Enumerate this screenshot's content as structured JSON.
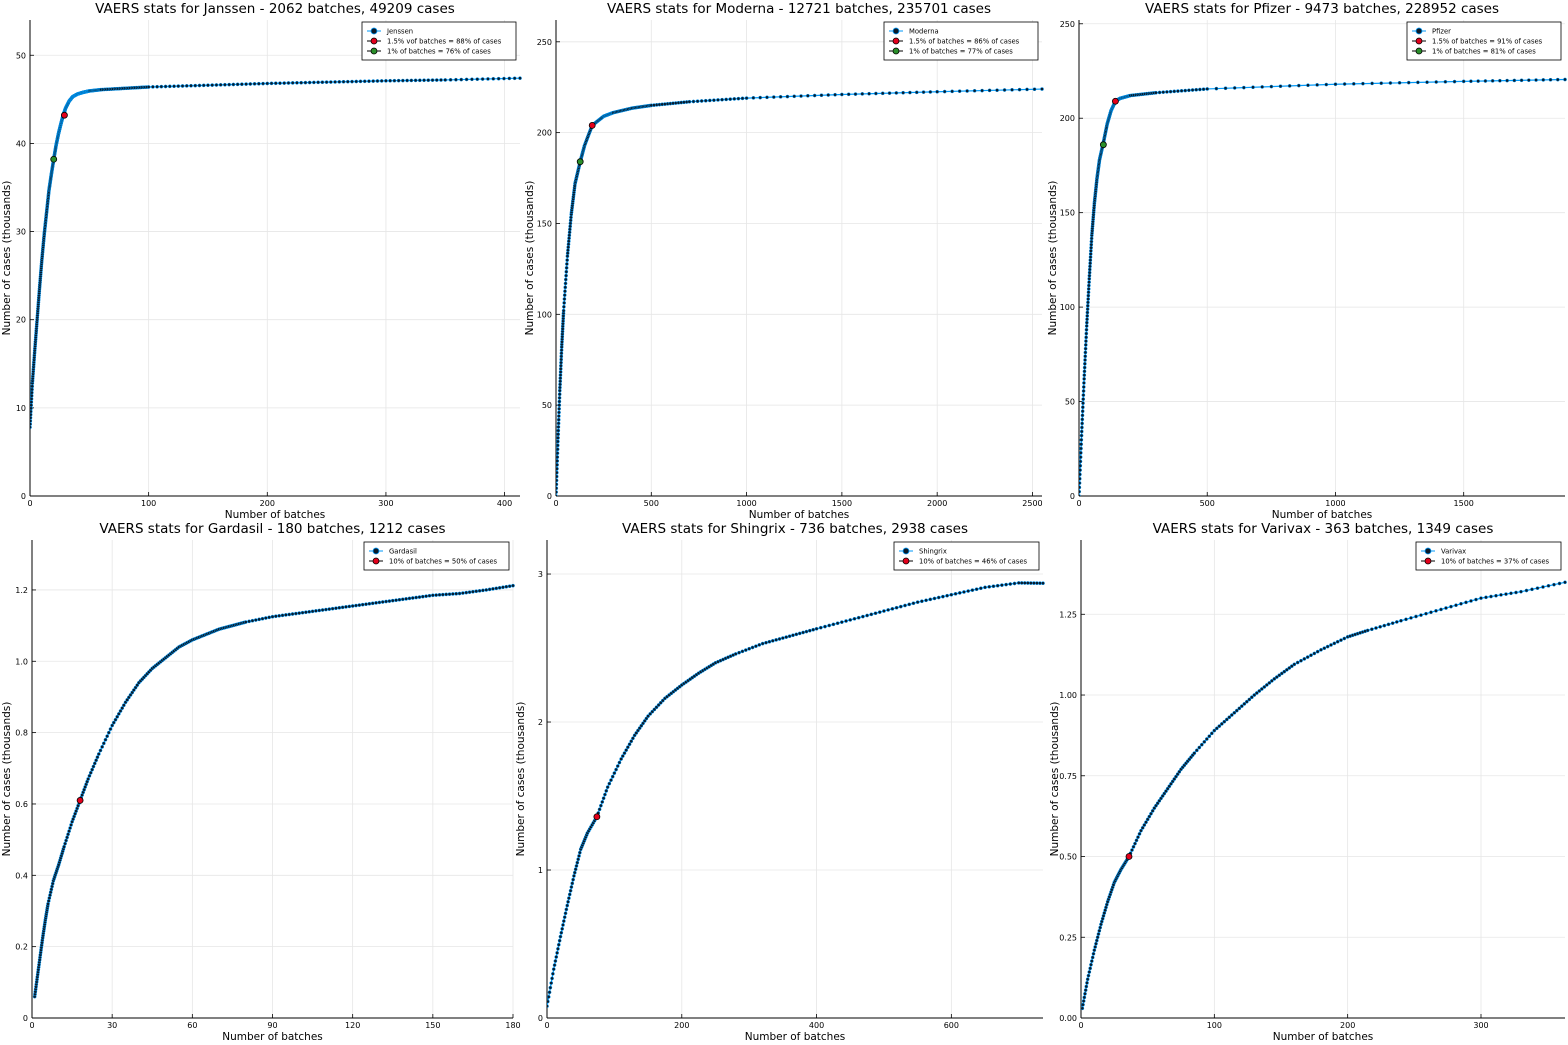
{
  "chart_data": [
    {
      "type": "line",
      "title": "VAERS stats for Janssen - 2062 batches, 49209 cases",
      "xlabel": "Number of batches",
      "ylabel": "Number of cases (thousands)",
      "xlim": [
        0,
        413
      ],
      "ylim": [
        0,
        54
      ],
      "xticks": [
        0,
        100,
        200,
        300,
        400
      ],
      "yticks": [
        0,
        10,
        20,
        30,
        40,
        50
      ],
      "grid": true,
      "legend_position": "top-right",
      "series": [
        {
          "name": "Jenssen",
          "color": "#009AFA",
          "markers": true,
          "x": [
            0,
            2,
            4,
            6,
            8,
            10,
            12,
            14,
            16,
            18,
            20,
            22,
            24,
            26,
            28,
            30,
            33,
            36,
            40,
            45,
            50,
            60,
            80,
            100,
            150,
            200,
            250,
            300,
            350,
            413
          ],
          "y": [
            7.8,
            12.8,
            16.5,
            20.0,
            23.5,
            26.8,
            29.7,
            32.2,
            34.7,
            36.5,
            38.2,
            39.8,
            41.1,
            42.2,
            43.2,
            44.0,
            44.8,
            45.3,
            45.6,
            45.8,
            45.95,
            46.1,
            46.25,
            46.4,
            46.6,
            46.8,
            46.95,
            47.1,
            47.2,
            47.4
          ]
        },
        {
          "name": "1.5% vof batches = 88% of cases",
          "color": "#E3001B",
          "x": [
            29
          ],
          "y": [
            43.2
          ]
        },
        {
          "name": "1% of batches = 76% of cases",
          "color": "#2A8F2A",
          "x": [
            20
          ],
          "y": [
            38.2
          ]
        }
      ]
    },
    {
      "type": "line",
      "title": "VAERS stats for Moderna - 12721 batches, 235701 cases",
      "xlabel": "Number of batches",
      "ylabel": "Number of cases (thousands)",
      "xlim": [
        0,
        2550
      ],
      "ylim": [
        0,
        262
      ],
      "xticks": [
        0,
        500,
        1000,
        1500,
        2000,
        2500
      ],
      "yticks": [
        0,
        50,
        100,
        150,
        200,
        250
      ],
      "grid": true,
      "legend_position": "top-right",
      "series": [
        {
          "name": "Moderna",
          "color": "#009AFA",
          "markers": true,
          "x": [
            0,
            10,
            20,
            30,
            40,
            60,
            80,
            100,
            127,
            150,
            190,
            250,
            300,
            400,
            500,
            700,
            1000,
            1500,
            2000,
            2550
          ],
          "y": [
            0,
            30,
            58,
            82,
            102,
            132,
            155,
            172,
            184,
            193,
            204,
            209,
            211,
            213.5,
            215,
            217,
            219,
            221,
            222.5,
            224
          ]
        },
        {
          "name": "1.5% of batches = 86% of cases",
          "color": "#E3001B",
          "x": [
            190
          ],
          "y": [
            204
          ]
        },
        {
          "name": "1% of batches = 77% of cases",
          "color": "#2A8F2A",
          "x": [
            127
          ],
          "y": [
            184
          ]
        }
      ]
    },
    {
      "type": "line",
      "title": "VAERS stats for Pfizer - 9473 batches, 228952 cases",
      "xlabel": "Number of batches",
      "ylabel": "Number of cases (thousands)",
      "xlim": [
        0,
        1895
      ],
      "ylim": [
        0,
        252
      ],
      "xticks": [
        0,
        500,
        1000,
        1500
      ],
      "yticks": [
        0,
        50,
        100,
        150,
        200,
        250
      ],
      "grid": true,
      "legend_position": "top-right",
      "series": [
        {
          "name": "Pfizer",
          "color": "#009AFA",
          "markers": true,
          "x": [
            0,
            10,
            20,
            30,
            40,
            50,
            60,
            70,
            80,
            95,
            110,
            125,
            142,
            160,
            200,
            300,
            500,
            1000,
            1500,
            1895
          ],
          "y": [
            0,
            32,
            62,
            90,
            115,
            138,
            155,
            168,
            178,
            187,
            197,
            204,
            209,
            210.5,
            212,
            213.5,
            215.5,
            218,
            219.5,
            220.5
          ]
        },
        {
          "name": "1.5% of batches = 91% of cases",
          "color": "#E3001B",
          "x": [
            142
          ],
          "y": [
            209
          ]
        },
        {
          "name": "1% of batches = 81% of cases",
          "color": "#2A8F2A",
          "x": [
            95
          ],
          "y": [
            186
          ]
        }
      ]
    },
    {
      "type": "line",
      "title": "VAERS stats for Gardasil - 180 batches, 1212 cases",
      "xlabel": "Number of batches",
      "ylabel": "Number of cases (thousands)",
      "xlim": [
        0,
        180
      ],
      "ylim": [
        0,
        1.34
      ],
      "xticks": [
        0,
        30,
        60,
        90,
        120,
        150,
        180
      ],
      "yticks": [
        0,
        0.2,
        0.4,
        0.6,
        0.8,
        1.0,
        1.2
      ],
      "yticklabels": [
        "0",
        "0.2",
        "0.4",
        "0.6",
        "0.8",
        "1.0",
        "1.2"
      ],
      "grid": true,
      "legend_position": "top-right",
      "series": [
        {
          "name": "Gardasil",
          "color": "#009AFA",
          "markers": true,
          "x": [
            1,
            2,
            3,
            4,
            5,
            6,
            8,
            10,
            12,
            15,
            18,
            21,
            25,
            30,
            35,
            40,
            45,
            50,
            55,
            60,
            65,
            70,
            75,
            80,
            90,
            100,
            110,
            120,
            130,
            140,
            150,
            160,
            170,
            180
          ],
          "y": [
            0.06,
            0.115,
            0.17,
            0.225,
            0.275,
            0.32,
            0.385,
            0.43,
            0.48,
            0.55,
            0.61,
            0.67,
            0.74,
            0.82,
            0.885,
            0.94,
            0.98,
            1.01,
            1.04,
            1.06,
            1.075,
            1.09,
            1.1,
            1.11,
            1.125,
            1.135,
            1.145,
            1.155,
            1.165,
            1.175,
            1.185,
            1.19,
            1.2,
            1.212
          ]
        },
        {
          "name": "10% of batches = 50% of cases",
          "color": "#E3001B",
          "x": [
            18
          ],
          "y": [
            0.61
          ]
        }
      ]
    },
    {
      "type": "line",
      "title": "VAERS stats for Shingrix - 736 batches, 2938 cases",
      "xlabel": "Number of batches",
      "ylabel": "Number of cases (thousands)",
      "xlim": [
        0,
        736
      ],
      "ylim": [
        0,
        3.23
      ],
      "xticks": [
        0,
        200,
        400,
        600
      ],
      "yticks": [
        0,
        1,
        2,
        3
      ],
      "grid": true,
      "legend_position": "top-right",
      "series": [
        {
          "name": "Shingrix",
          "color": "#009AFA",
          "markers": true,
          "x": [
            0,
            10,
            20,
            30,
            40,
            50,
            60,
            74,
            90,
            110,
            130,
            150,
            175,
            200,
            225,
            250,
            280,
            320,
            360,
            400,
            450,
            500,
            550,
            600,
            650,
            700,
            736
          ],
          "y": [
            0.08,
            0.33,
            0.55,
            0.76,
            0.96,
            1.14,
            1.25,
            1.36,
            1.56,
            1.75,
            1.91,
            2.04,
            2.16,
            2.25,
            2.33,
            2.4,
            2.46,
            2.53,
            2.58,
            2.63,
            2.69,
            2.75,
            2.81,
            2.86,
            2.91,
            2.94,
            2.938
          ]
        },
        {
          "name": "10% of batches = 46% of cases",
          "color": "#E3001B",
          "x": [
            74
          ],
          "y": [
            1.36
          ]
        }
      ]
    },
    {
      "type": "line",
      "title": "VAERS stats for Varivax - 363 batches, 1349 cases",
      "xlabel": "Number of batches",
      "ylabel": "Number of cases (thousands)",
      "xlim": [
        0,
        363
      ],
      "ylim": [
        0,
        1.48
      ],
      "xticks": [
        0,
        100,
        200,
        300
      ],
      "yticks": [
        0,
        0.25,
        0.5,
        0.75,
        1.0,
        1.25
      ],
      "yticklabels": [
        "0.00",
        "0.25",
        "0.50",
        "0.75",
        "1.00",
        "1.25"
      ],
      "grid": true,
      "legend_position": "top-right",
      "series": [
        {
          "name": "Varivax",
          "color": "#009AFA",
          "markers": true,
          "x": [
            1,
            5,
            10,
            15,
            20,
            25,
            30,
            36,
            45,
            55,
            65,
            75,
            85,
            100,
            115,
            130,
            145,
            160,
            180,
            200,
            215,
            240,
            270,
            300,
            330,
            363
          ],
          "y": [
            0.03,
            0.12,
            0.21,
            0.29,
            0.36,
            0.42,
            0.46,
            0.5,
            0.58,
            0.65,
            0.71,
            0.77,
            0.82,
            0.89,
            0.945,
            1.0,
            1.05,
            1.095,
            1.14,
            1.18,
            1.2,
            1.23,
            1.265,
            1.3,
            1.32,
            1.349
          ]
        },
        {
          "name": "10% of batches = 37% of cases",
          "color": "#E3001B",
          "x": [
            36
          ],
          "y": [
            0.5
          ]
        }
      ]
    }
  ]
}
